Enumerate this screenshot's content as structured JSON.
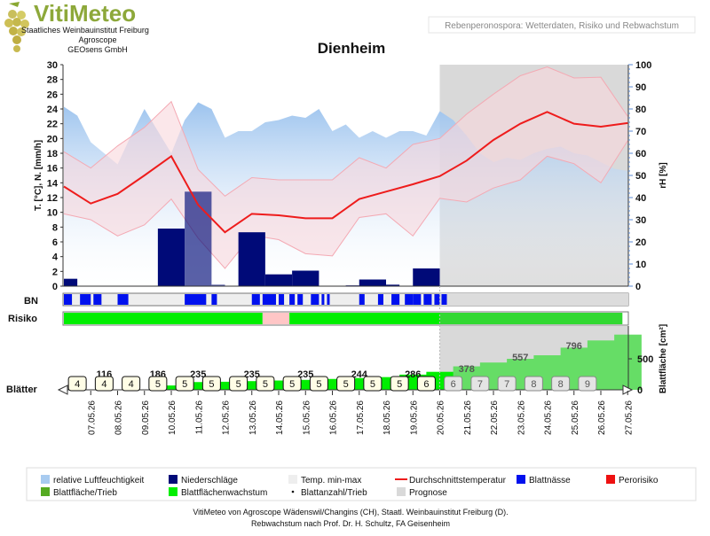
{
  "header": {
    "brand": "VitiMeteo",
    "org_lines": [
      "Staatliches Weinbauinstitut Freiburg",
      "Agroscope",
      "GEOsens GmbH"
    ],
    "module_title": "Rebenperonospora: Wetterdaten, Risiko und Rebwachstum",
    "station": "Dienheim"
  },
  "colors": {
    "humidity": "#a8cbf0",
    "precip": "#000a78",
    "temp_band": "#f9d7dc",
    "temp_line": "#ee1c1c",
    "leaf_wetness": "#0011ee",
    "risk": "#ee1111",
    "risk_ok": "#00ee00",
    "leaf_area": "#33cc33",
    "growth": "#00ee00",
    "forecast": "#d9d9d9"
  },
  "chart_data": {
    "type": "line",
    "title": "Dienheim",
    "x": [
      "07.05.26",
      "08.05.26",
      "09.05.26",
      "10.05.26",
      "11.05.26",
      "12.05.26",
      "13.05.26",
      "14.05.26",
      "15.05.26",
      "16.05.26",
      "17.05.26",
      "18.05.26",
      "19.05.26",
      "20.05.26",
      "21.05.26",
      "22.05.26",
      "23.05.26",
      "24.05.26",
      "25.05.26",
      "26.05.26",
      "27.05.26"
    ],
    "ylabel_left": "T. [°C], N. [mm/h]",
    "ylabel_right": "rH [%]",
    "ylim_left": [
      0,
      30
    ],
    "ylim_right": [
      0,
      100
    ],
    "left_ticks": [
      0,
      2,
      4,
      6,
      8,
      10,
      12,
      14,
      16,
      18,
      20,
      22,
      24,
      26,
      28,
      30
    ],
    "right_ticks": [
      0,
      10,
      20,
      30,
      40,
      50,
      60,
      70,
      80,
      90,
      100
    ],
    "forecast_start": "20.05.26",
    "series": {
      "humidity_x": [
        6.0,
        6.5,
        7.0,
        7.5,
        8.0,
        8.5,
        9.0,
        9.5,
        10.0,
        10.5,
        11.0,
        11.5,
        12.0,
        12.5,
        13.0,
        13.5,
        14.0,
        14.5,
        15.0,
        15.5,
        16.0,
        16.5,
        17.0,
        17.5,
        18.0,
        18.5,
        19.0,
        19.5,
        20.0,
        20.5,
        21.0,
        21.5,
        22.0,
        22.5,
        23.0,
        23.5,
        24.0,
        24.5,
        25.0,
        25.5,
        26.0,
        26.5,
        27.0
      ],
      "humidity": [
        81,
        77,
        65,
        60,
        55,
        68,
        80,
        70,
        60,
        75,
        83,
        80,
        67,
        70,
        70,
        74,
        75,
        77,
        76,
        80,
        70,
        73,
        67,
        70,
        67,
        70,
        70,
        68,
        79,
        75,
        68,
        60,
        56,
        58,
        57,
        60,
        62,
        63,
        60,
        59,
        56,
        53,
        52
      ],
      "precip": [
        {
          "x": 6.0,
          "w": 0.5,
          "v": 1.0
        },
        {
          "x": 9.5,
          "w": 1.0,
          "v": 7.8
        },
        {
          "x": 10.5,
          "w": 1.0,
          "v": 12.8
        },
        {
          "x": 11.5,
          "w": 0.5,
          "v": 0.2
        },
        {
          "x": 12.5,
          "w": 1.0,
          "v": 7.3
        },
        {
          "x": 13.5,
          "w": 1.0,
          "v": 1.6
        },
        {
          "x": 14.5,
          "w": 1.0,
          "v": 2.1
        },
        {
          "x": 16.5,
          "w": 0.5,
          "v": 0.1
        },
        {
          "x": 17.0,
          "w": 1.0,
          "v": 0.9
        },
        {
          "x": 18.0,
          "w": 0.5,
          "v": 0.2
        },
        {
          "x": 19.0,
          "w": 1.0,
          "v": 2.4
        }
      ],
      "temp_days": [
        6,
        7,
        8,
        9,
        10,
        11,
        12,
        13,
        14,
        15,
        16,
        17,
        18,
        19,
        20,
        21,
        22,
        23,
        24,
        25,
        26,
        27
      ],
      "temp_mean": [
        13.5,
        11.2,
        12.5,
        15.0,
        17.6,
        11.0,
        7.3,
        9.8,
        9.6,
        9.2,
        9.2,
        11.8,
        12.8,
        13.8,
        14.9,
        17.0,
        19.8,
        22.0,
        23.6,
        22.0,
        21.6,
        22.1
      ],
      "temp_max": [
        18.2,
        16.0,
        19.0,
        21.5,
        25.0,
        15.8,
        12.2,
        14.7,
        14.4,
        14.4,
        14.4,
        17.4,
        16.0,
        19.2,
        20.0,
        23.3,
        26.0,
        28.5,
        29.7,
        28.2,
        28.3,
        23.0
      ],
      "temp_min": [
        9.8,
        9.0,
        6.8,
        8.3,
        11.8,
        6.5,
        2.4,
        6.9,
        6.3,
        4.4,
        4.1,
        9.3,
        9.8,
        6.8,
        11.9,
        11.4,
        13.3,
        14.4,
        17.6,
        16.6,
        14.0,
        19.7
      ]
    },
    "leaf_wetness_intervals": [
      [
        6.0,
        6.3
      ],
      [
        6.6,
        7.0
      ],
      [
        7.1,
        7.4
      ],
      [
        8.0,
        8.4
      ],
      [
        10.5,
        11.3
      ],
      [
        11.5,
        11.7
      ],
      [
        13.0,
        13.3
      ],
      [
        13.4,
        13.9
      ],
      [
        14.0,
        14.2
      ],
      [
        14.4,
        14.6
      ],
      [
        14.7,
        14.9
      ],
      [
        15.2,
        15.5
      ],
      [
        15.6,
        15.7
      ],
      [
        15.8,
        15.9
      ],
      [
        17.0,
        17.2
      ],
      [
        17.7,
        17.9
      ],
      [
        18.2,
        18.5
      ],
      [
        18.7,
        19.0
      ],
      [
        19.0,
        19.3
      ],
      [
        19.4,
        19.7
      ],
      [
        19.8,
        20.0
      ]
    ],
    "risk_intervals": [
      {
        "from": 6.0,
        "to": 13.4,
        "level": "ok"
      },
      {
        "from": 13.4,
        "to": 14.4,
        "level": "light"
      },
      {
        "from": 14.4,
        "to": 26.8,
        "level": "ok"
      }
    ],
    "leaves_label": "Blätter",
    "leaf_area_ticks": [
      0,
      500
    ],
    "leaf_area": [
      {
        "x": 8.5,
        "v": 0
      },
      {
        "x": 9.5,
        "v": 70
      },
      {
        "x": 10.5,
        "v": 125
      },
      {
        "x": 11.5,
        "v": 130
      },
      {
        "x": 12.5,
        "v": 140
      },
      {
        "x": 13.5,
        "v": 150
      },
      {
        "x": 14.5,
        "v": 160
      },
      {
        "x": 15.5,
        "v": 175
      },
      {
        "x": 16.5,
        "v": 190
      },
      {
        "x": 17.5,
        "v": 205
      },
      {
        "x": 18.5,
        "v": 245
      },
      {
        "x": 19.5,
        "v": 290
      },
      {
        "x": 20.5,
        "v": 378
      },
      {
        "x": 21.5,
        "v": 440
      },
      {
        "x": 22.5,
        "v": 500
      },
      {
        "x": 23.5,
        "v": 557
      },
      {
        "x": 24.5,
        "v": 680
      },
      {
        "x": 25.5,
        "v": 796
      },
      {
        "x": 26.5,
        "v": 890
      }
    ],
    "leaf_count": [
      4,
      4,
      4,
      5,
      5,
      5,
      5,
      5,
      5,
      5,
      5,
      5,
      5,
      6,
      6,
      7,
      7,
      8,
      8,
      9
    ],
    "leaf_count_x": [
      6.5,
      7.5,
      8.5,
      9.5,
      10.5,
      11.5,
      12.5,
      13.5,
      14.5,
      15.5,
      16.5,
      17.5,
      18.5,
      19.5,
      20.5,
      21.5,
      22.5,
      23.5,
      24.5,
      25.5
    ],
    "leaf_area_labels": [
      {
        "x": 7.5,
        "text": "116"
      },
      {
        "x": 9.5,
        "text": "186"
      },
      {
        "x": 11.0,
        "text": "235"
      },
      {
        "x": 13.0,
        "text": "235"
      },
      {
        "x": 15.0,
        "text": "235"
      },
      {
        "x": 17.0,
        "text": "244"
      },
      {
        "x": 19.0,
        "text": "286"
      },
      {
        "x": 21.0,
        "text": "378"
      },
      {
        "x": 23.0,
        "text": "557"
      },
      {
        "x": 25.0,
        "text": "796"
      }
    ],
    "legend": [
      {
        "key": "humidity",
        "label": "relative Luftfeuchtigkeit"
      },
      {
        "key": "precip",
        "label": "Niederschläge"
      },
      {
        "key": "tminmax",
        "label": "Temp. min-max"
      },
      {
        "key": "tmean",
        "label": "Durchschnittstemperatur"
      },
      {
        "key": "wet",
        "label": "Blattnässe"
      },
      {
        "key": "risk",
        "label": "Perorisiko"
      },
      {
        "key": "leafarea",
        "label": "Blattfläche/Trieb"
      },
      {
        "key": "growth",
        "label": "Blattflächenwachstum"
      },
      {
        "key": "leafcount",
        "label": "Blattanzahl/Trieb"
      },
      {
        "key": "forecast",
        "label": "Prognose"
      }
    ],
    "row_labels": {
      "bn": "BN",
      "risk": "Risiko",
      "leaves": "Blätter"
    },
    "right_label_area": "Blattfläche [cm²]"
  },
  "footer": {
    "line1": "VitiMeteo von Agroscope Wädenswil/Changins (CH), Staatl. Weinbauinstitut Freiburg (D).",
    "line2": "Rebwachstum nach Prof. Dr. H. Schultz, FA Geisenheim"
  }
}
